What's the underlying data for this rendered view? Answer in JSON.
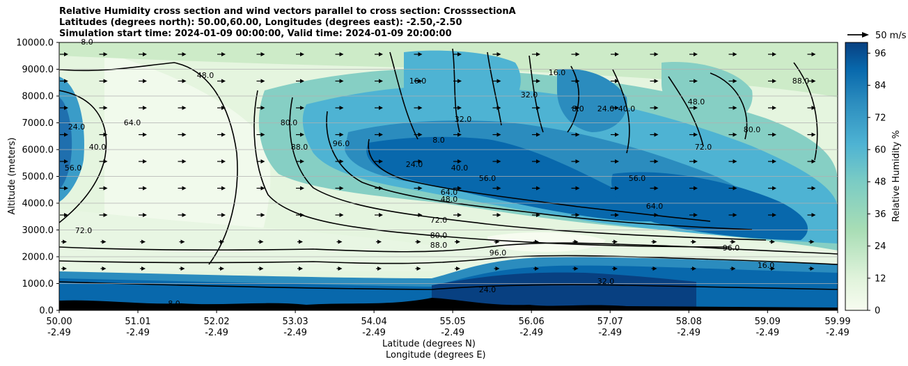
{
  "chart_data": {
    "type": "heatmap",
    "title_lines": [
      "Relative Humidity cross section and wind vectors parallel to cross section: CrosssectionA",
      "Latitudes (degrees north): 50.00,60.00, Longitudes (degrees east): -2.50,-2.50",
      "Simulation start time: 2024-01-09 00:00:00, Valid time: 2024-01-09 20:00:00"
    ],
    "xlabel_lines": [
      "Latitude (degrees N)",
      "Longitude (degrees E)"
    ],
    "ylabel": "Altitude (meters)",
    "x_ticks": [
      {
        "lat": "50.00",
        "lon": "-2.49"
      },
      {
        "lat": "51.01",
        "lon": "-2.49"
      },
      {
        "lat": "52.02",
        "lon": "-2.49"
      },
      {
        "lat": "53.03",
        "lon": "-2.49"
      },
      {
        "lat": "54.04",
        "lon": "-2.49"
      },
      {
        "lat": "55.05",
        "lon": "-2.49"
      },
      {
        "lat": "56.06",
        "lon": "-2.49"
      },
      {
        "lat": "57.07",
        "lon": "-2.49"
      },
      {
        "lat": "58.08",
        "lon": "-2.49"
      },
      {
        "lat": "59.09",
        "lon": "-2.49"
      },
      {
        "lat": "59.99",
        "lon": "-2.49"
      }
    ],
    "xlim": [
      50.0,
      59.99
    ],
    "y_ticks": [
      "0.0",
      "1000.0",
      "2000.0",
      "3000.0",
      "4000.0",
      "5000.0",
      "6000.0",
      "7000.0",
      "8000.0",
      "9000.0",
      "10000.0"
    ],
    "ylim": [
      0,
      10000
    ],
    "grid": "horizontal",
    "colorbar": {
      "label": "Relative Humidity %",
      "ticks": [
        "0",
        "12",
        "24",
        "36",
        "48",
        "60",
        "72",
        "84",
        "96"
      ],
      "range": [
        0,
        100
      ],
      "colormap": "GnBu"
    },
    "quiver_key": {
      "label": "50 m/s"
    },
    "contour_labels": [
      "8.0",
      "24.0",
      "40.0",
      "56.0",
      "64.0",
      "48.0",
      "72.0",
      "80.0",
      "88.0",
      "96.0",
      "16.0",
      "32.0"
    ],
    "colors": {
      "low": "#f7fcf0",
      "mid": "#7bccc4",
      "high": "#084081"
    }
  }
}
